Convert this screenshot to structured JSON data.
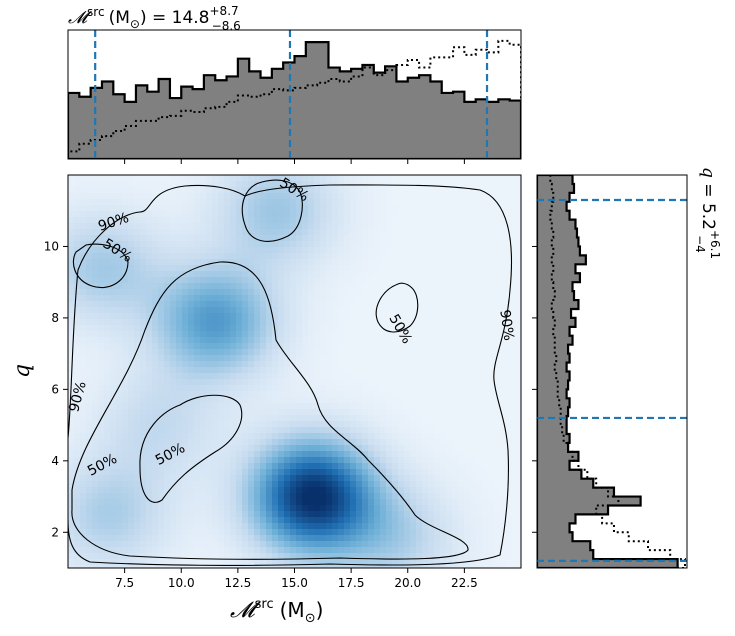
{
  "chart_data": [
    {
      "type": "histogram",
      "panel": "top-marginal",
      "title_symbol": "𝓜",
      "title_sup": "src",
      "title_unit": "(M",
      "title_unit_sub": "⊙",
      "title_value": ") = 14.8",
      "title_plus": "+8.7",
      "title_minus": "−8.6",
      "xlim": [
        5.0,
        25.0
      ],
      "bins": [
        5.0,
        5.5,
        6.0,
        6.5,
        7.0,
        7.5,
        8.0,
        8.5,
        9.0,
        9.5,
        10.0,
        10.5,
        11.0,
        11.5,
        12.0,
        12.5,
        13.0,
        13.5,
        14.0,
        14.5,
        15.0,
        15.5,
        16.0,
        16.5,
        17.0,
        17.5,
        18.0,
        18.5,
        19.0,
        19.5,
        20.0,
        20.5,
        21.0,
        21.5,
        22.0,
        22.5,
        23.0,
        23.5,
        24.0,
        24.5,
        25.0
      ],
      "series": [
        {
          "style": "filled",
          "values": [
            0.52,
            0.49,
            0.56,
            0.61,
            0.51,
            0.45,
            0.58,
            0.53,
            0.63,
            0.48,
            0.57,
            0.55,
            0.66,
            0.62,
            0.65,
            0.79,
            0.69,
            0.64,
            0.71,
            0.76,
            0.81,
            0.92,
            0.92,
            0.72,
            0.69,
            0.71,
            0.74,
            0.68,
            0.73,
            0.61,
            0.64,
            0.66,
            0.61,
            0.52,
            0.53,
            0.45,
            0.47,
            0.45,
            0.47,
            0.46
          ]
        },
        {
          "style": "dotted",
          "values": [
            0.06,
            0.12,
            0.15,
            0.18,
            0.22,
            0.26,
            0.3,
            0.3,
            0.33,
            0.34,
            0.38,
            0.37,
            0.4,
            0.41,
            0.45,
            0.5,
            0.49,
            0.51,
            0.55,
            0.54,
            0.56,
            0.58,
            0.6,
            0.63,
            0.61,
            0.65,
            0.72,
            0.66,
            0.7,
            0.74,
            0.78,
            0.72,
            0.8,
            0.8,
            0.88,
            0.82,
            0.86,
            0.84,
            0.93,
            0.9
          ]
        }
      ],
      "quantiles": [
        6.2,
        14.8,
        23.5
      ]
    },
    {
      "type": "histogram",
      "panel": "right-marginal",
      "orientation": "horizontal",
      "title_symbol": "q",
      "title_value": " = 5.2",
      "title_plus": "+6.1",
      "title_minus": "−4",
      "ylim": [
        1.0,
        12.0
      ],
      "bins": [
        1.0,
        1.25,
        1.5,
        1.75,
        2.0,
        2.25,
        2.5,
        2.75,
        3.0,
        3.25,
        3.5,
        3.75,
        4.0,
        4.25,
        4.5,
        4.75,
        5.0,
        5.25,
        5.5,
        5.75,
        6.0,
        6.25,
        6.5,
        6.75,
        7.0,
        7.25,
        7.5,
        7.75,
        8.0,
        8.25,
        8.5,
        8.75,
        9.0,
        9.25,
        9.5,
        9.75,
        10.0,
        10.25,
        10.5,
        10.75,
        11.0,
        11.25,
        11.5,
        11.75,
        12.0
      ],
      "series": [
        {
          "style": "filled",
          "values": [
            0.95,
            0.38,
            0.36,
            0.24,
            0.22,
            0.26,
            0.48,
            0.7,
            0.52,
            0.38,
            0.3,
            0.22,
            0.28,
            0.21,
            0.22,
            0.2,
            0.2,
            0.21,
            0.22,
            0.2,
            0.21,
            0.22,
            0.2,
            0.22,
            0.21,
            0.24,
            0.22,
            0.26,
            0.23,
            0.28,
            0.25,
            0.24,
            0.29,
            0.26,
            0.33,
            0.29,
            0.28,
            0.27,
            0.26,
            0.22,
            0.2,
            0.22,
            0.25,
            0.24
          ]
        },
        {
          "style": "dotted",
          "values": [
            1.0,
            0.9,
            0.75,
            0.62,
            0.52,
            0.44,
            0.4,
            0.55,
            0.48,
            0.4,
            0.34,
            0.28,
            0.24,
            0.21,
            0.18,
            0.17,
            0.16,
            0.16,
            0.15,
            0.14,
            0.14,
            0.13,
            0.12,
            0.13,
            0.12,
            0.12,
            0.11,
            0.12,
            0.11,
            0.1,
            0.12,
            0.11,
            0.1,
            0.11,
            0.1,
            0.11,
            0.1,
            0.11,
            0.1,
            0.09,
            0.1,
            0.11,
            0.1,
            0.09
          ]
        }
      ],
      "quantiles": [
        1.2,
        5.2,
        11.3
      ]
    },
    {
      "type": "heatmap",
      "panel": "joint",
      "xlabel_symbol": "𝓜",
      "xlabel_sup": "src",
      "xlabel_unit": "(M",
      "xlabel_unit_sub": "⊙",
      "xlabel_unit_close": ")",
      "ylabel": "q",
      "xlim": [
        5.0,
        25.0
      ],
      "ylim": [
        1.0,
        12.0
      ],
      "xticks": [
        "7.5",
        "10.0",
        "12.5",
        "15.0",
        "17.5",
        "20.0",
        "22.5"
      ],
      "xtick_values": [
        7.5,
        10.0,
        12.5,
        15.0,
        17.5,
        20.0,
        22.5
      ],
      "yticks": [
        "2",
        "4",
        "6",
        "8",
        "10"
      ],
      "ytick_values": [
        2,
        4,
        6,
        8,
        10
      ],
      "colormap": "Blues",
      "density_peaks": [
        {
          "x": 15.8,
          "y": 3.0,
          "weight": 1.0
        },
        {
          "x": 11.5,
          "y": 7.9,
          "weight": 0.55
        },
        {
          "x": 14.2,
          "y": 11.0,
          "weight": 0.32
        },
        {
          "x": 6.5,
          "y": 9.4,
          "weight": 0.3
        },
        {
          "x": 6.8,
          "y": 2.5,
          "weight": 0.28
        },
        {
          "x": 19.5,
          "y": 1.8,
          "weight": 0.25
        },
        {
          "x": 9.0,
          "y": 5.0,
          "weight": 0.2
        }
      ],
      "contour_labels": [
        {
          "text": "90%",
          "x": 7.0,
          "y": 10.7,
          "rot": -18
        },
        {
          "text": "50%",
          "x": 7.2,
          "y": 9.9,
          "rot": 32
        },
        {
          "text": "50%",
          "x": 15.0,
          "y": 11.6,
          "rot": 32
        },
        {
          "text": "50%",
          "x": 19.7,
          "y": 7.7,
          "rot": 60
        },
        {
          "text": "90%",
          "x": 24.4,
          "y": 7.8,
          "rot": 82
        },
        {
          "text": "90%",
          "x": 5.4,
          "y": 5.8,
          "rot": -75
        },
        {
          "text": "50%",
          "x": 6.5,
          "y": 3.9,
          "rot": -28
        },
        {
          "text": "50%",
          "x": 9.5,
          "y": 4.2,
          "rot": -28
        }
      ]
    }
  ],
  "colors": {
    "fill": "#808080",
    "quantile": "#1f77b4",
    "contour": "#000000"
  }
}
